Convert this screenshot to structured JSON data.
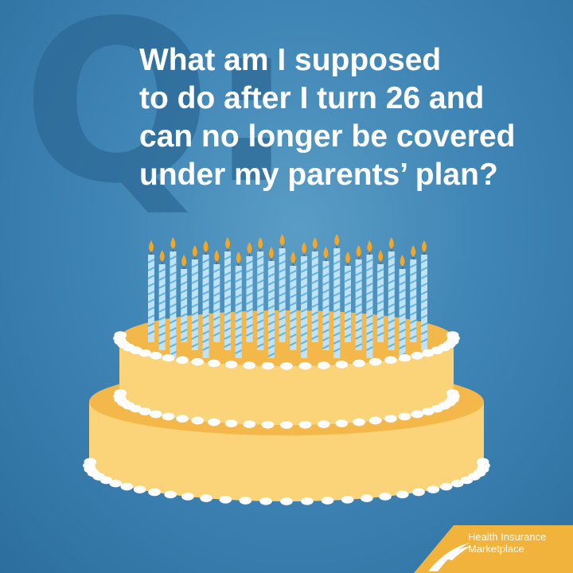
{
  "question": {
    "mark": "Q:",
    "lines": [
      "What am I supposed",
      "to do after I turn 26 and",
      "can no longer be covered",
      "under my parents’ plan?"
    ]
  },
  "illustration": {
    "subject": "birthday-cake",
    "candle_count": 26,
    "colors": {
      "background": "#3f85b5",
      "cake": "#fbd47a",
      "cake_shadow": "#f4b84a",
      "frosting": "#ffffff",
      "candle": "#bfe2f5",
      "flame": "#f5a623",
      "logo_banner": "#f2b33d"
    }
  },
  "brand": {
    "line1": "Health Insurance",
    "line2": "Marketplace"
  }
}
